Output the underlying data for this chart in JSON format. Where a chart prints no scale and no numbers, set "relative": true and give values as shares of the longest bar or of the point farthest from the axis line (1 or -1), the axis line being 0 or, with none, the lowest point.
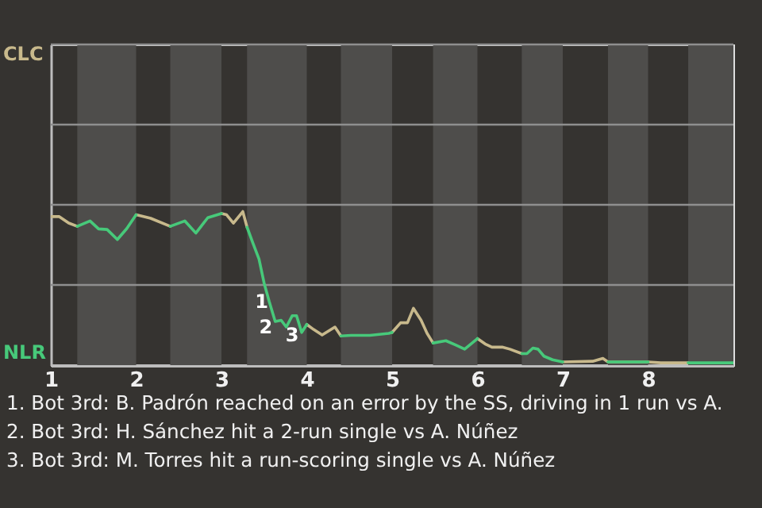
{
  "chart_data": {
    "type": "line",
    "relative": true,
    "x": [
      1.0,
      1.1,
      1.21,
      1.31,
      1.46,
      1.56,
      1.66,
      1.78,
      1.89,
      2.0,
      2.17,
      2.4,
      2.57,
      2.7,
      2.84,
      3.0,
      3.06,
      3.14,
      3.25,
      3.3,
      3.37,
      3.44,
      3.5,
      3.56,
      3.63,
      3.7,
      3.76,
      3.83,
      3.88,
      3.94,
      4.0,
      4.08,
      4.18,
      4.33,
      4.4,
      4.52,
      4.74,
      4.85,
      4.96,
      5.0,
      5.1,
      5.18,
      5.25,
      5.34,
      5.41,
      5.48,
      5.63,
      5.74,
      5.85,
      6.0,
      6.09,
      6.17,
      6.29,
      6.38,
      6.52,
      6.58,
      6.65,
      6.71,
      6.78,
      6.88,
      7.0,
      7.35,
      7.47,
      7.53,
      8.0,
      8.15,
      8.47,
      9.0
    ],
    "series": [
      {
        "color": "#c8b98c",
        "values": [
          0.967,
          0.967,
          0.925,
          0.904,
          null,
          null,
          null,
          null,
          null,
          0.979,
          0.956,
          0.904,
          null,
          null,
          null,
          0.987,
          0.979,
          0.925,
          1,
          0.898,
          null,
          null,
          null,
          null,
          null,
          null,
          null,
          null,
          null,
          null,
          0.265,
          0.232,
          0.196,
          0.248,
          0.19,
          null,
          null,
          null,
          null,
          0.213,
          0.276,
          0.276,
          0.37,
          0.292,
          0.207,
          0.144,
          null,
          null,
          null,
          0.173,
          0.138,
          0.117,
          0.117,
          0.104,
          0.075,
          null,
          null,
          null,
          null,
          null,
          0.021,
          0.025,
          0.044,
          0.021,
          0.021,
          0.015,
          0.015,
          null
        ]
      },
      {
        "color": "#47c97a",
        "values": [
          null,
          null,
          null,
          0.904,
          0.939,
          0.887,
          0.883,
          0.818,
          0.889,
          0.979,
          null,
          0.904,
          0.939,
          0.86,
          0.96,
          0.987,
          null,
          null,
          null,
          0.898,
          0.793,
          0.691,
          0.534,
          0.413,
          0.284,
          0.292,
          0.248,
          0.322,
          0.322,
          0.213,
          0.265,
          null,
          null,
          null,
          0.19,
          0.194,
          0.194,
          0.2,
          0.207,
          0.213,
          null,
          null,
          null,
          null,
          null,
          0.144,
          0.159,
          0.132,
          0.104,
          0.173,
          null,
          null,
          null,
          null,
          0.075,
          0.075,
          0.111,
          0.104,
          0.058,
          0.035,
          0.021,
          null,
          null,
          0.021,
          0.021,
          null,
          0.015,
          0.015
        ]
      }
    ],
    "xlim": [
      1,
      9
    ],
    "xticks": [
      1,
      2,
      3,
      4,
      5,
      6,
      7,
      8
    ],
    "ref_lines": [
      {
        "axis": "y",
        "value": 0.522,
        "color": "#8f8f8f"
      },
      {
        "axis": "y",
        "value": 1.044,
        "color": "#8f8f8f"
      },
      {
        "axis": "y",
        "value": 1.566,
        "color": "#8f8f8f"
      },
      {
        "axis": "y",
        "value": 2.088,
        "color": "#8f8f8f"
      }
    ],
    "marker": "none",
    "line_style": "solid",
    "bands": [
      {
        "axis": "x",
        "from": 1.31,
        "to": 2,
        "color": "#4e4d4b"
      },
      {
        "axis": "x",
        "from": 2.4,
        "to": 3,
        "color": "#4e4d4b"
      },
      {
        "axis": "x",
        "from": 3.3,
        "to": 4,
        "color": "#4e4d4b"
      },
      {
        "axis": "x",
        "from": 4.4,
        "to": 5,
        "color": "#4e4d4b"
      },
      {
        "axis": "x",
        "from": 5.48,
        "to": 6,
        "color": "#4e4d4b"
      },
      {
        "axis": "x",
        "from": 6.52,
        "to": 7,
        "color": "#4e4d4b"
      },
      {
        "axis": "x",
        "from": 7.53,
        "to": 8,
        "color": "#4e4d4b"
      },
      {
        "axis": "x",
        "from": 8.47,
        "to": 9,
        "color": "#4e4d4b"
      }
    ],
    "annotations": [
      "CLC",
      "NLR",
      {
        "text": "1",
        "x": 3.6,
        "y": 0.413
      },
      {
        "text": "2",
        "x": 3.65,
        "y": 0.248
      },
      {
        "text": "3",
        "x": 3.96,
        "y": 0.196
      },
      "1. Bot 3rd: B. Padrón reached on an error by the SS, driving in 1 run vs A.",
      "2. Bot 3rd: H. Sánchez hit a 2-run single vs A. Núñez",
      "3. Bot 3rd: M. Torres hit a run-scoring single vs A. Núñez"
    ]
  }
}
